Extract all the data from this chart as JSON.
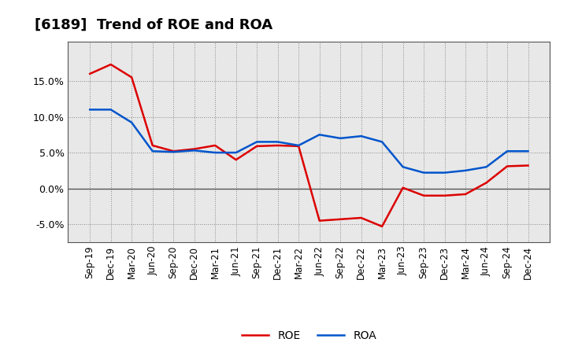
{
  "title": "[6189]  Trend of ROE and ROA",
  "labels": [
    "Sep-19",
    "Dec-19",
    "Mar-20",
    "Jun-20",
    "Sep-20",
    "Dec-20",
    "Mar-21",
    "Jun-21",
    "Sep-21",
    "Dec-21",
    "Mar-22",
    "Jun-22",
    "Sep-22",
    "Dec-22",
    "Mar-23",
    "Jun-23",
    "Sep-23",
    "Dec-23",
    "Mar-24",
    "Jun-24",
    "Sep-24",
    "Dec-24"
  ],
  "ROE": [
    16.0,
    17.3,
    15.5,
    6.0,
    5.2,
    5.5,
    6.0,
    4.0,
    5.9,
    6.0,
    5.9,
    -4.5,
    -4.3,
    -4.1,
    -5.3,
    0.1,
    -1.0,
    -1.0,
    -0.8,
    0.8,
    3.1,
    3.2
  ],
  "ROA": [
    11.0,
    11.0,
    9.2,
    5.2,
    5.1,
    5.3,
    5.0,
    5.0,
    6.5,
    6.5,
    6.0,
    7.5,
    7.0,
    7.3,
    6.5,
    3.0,
    2.2,
    2.2,
    2.5,
    3.0,
    5.2,
    5.2
  ],
  "roe_color": "#dd0000",
  "roa_color": "#0055cc",
  "bg_outer": "#ffffff",
  "bg_plot": "#e8e8e8",
  "grid_color": "#888888",
  "zero_line_color": "#555555",
  "spine_color": "#555555",
  "ylim": [
    -7.5,
    20.5
  ],
  "yticks": [
    -5.0,
    0.0,
    5.0,
    10.0,
    15.0
  ],
  "line_width": 1.8,
  "title_fontsize": 13,
  "tick_fontsize": 8.5,
  "ytick_fontsize": 9
}
